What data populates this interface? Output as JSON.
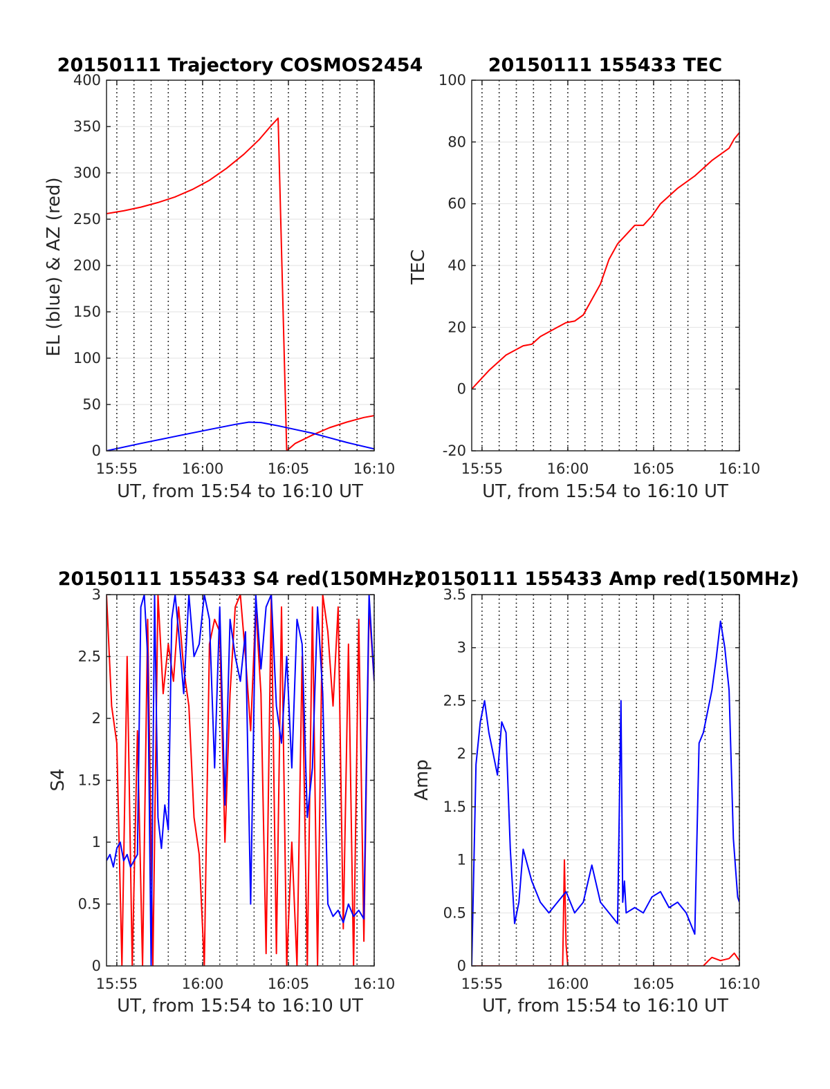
{
  "figure": {
    "background": "#ffffff"
  },
  "colors": {
    "el": "#0000ff",
    "az": "#ff0000",
    "grid": "#000000",
    "axis": "#262626"
  },
  "chart_data": [
    {
      "id": "trajectory",
      "type": "line",
      "title": "20150111 Trajectory COSMOS2454",
      "xlabel": "UT, from 15:54 to 16:10 UT",
      "ylabel": "EL (blue) & AZ (red)",
      "xlim": [
        "15:54.4",
        "16:10"
      ],
      "ylim": [
        0,
        400
      ],
      "xticks": [
        "15:55",
        "16:00",
        "16:05",
        "16:10"
      ],
      "yticks": [
        0,
        50,
        100,
        150,
        200,
        250,
        300,
        350,
        400
      ],
      "grid": "dotted vertical every minute, solid horizontal",
      "series": [
        {
          "key": "az",
          "color": "#ff0000",
          "x": [
            0.0,
            1.0,
            2.0,
            3.0,
            4.0,
            5.0,
            6.0,
            7.0,
            8.0,
            8.9,
            9.55,
            10.0,
            10.5,
            11.0,
            12.0,
            13.0,
            14.0,
            15.0,
            15.6
          ],
          "y": [
            256,
            259,
            263,
            268,
            274,
            282,
            292,
            305,
            320,
            336,
            350,
            359,
            0,
            8,
            17,
            25,
            31,
            36,
            38
          ]
        },
        {
          "key": "el",
          "color": "#0000ff",
          "x": [
            0.0,
            2.0,
            4.0,
            6.0,
            7.5,
            8.3,
            9.0,
            10.0,
            11.0,
            12.0,
            13.0,
            14.0,
            15.6
          ],
          "y": [
            0,
            8,
            15.5,
            23,
            28.5,
            31,
            30.5,
            27,
            23,
            19,
            14,
            9,
            2
          ]
        }
      ]
    },
    {
      "id": "tec",
      "type": "line",
      "title": "20150111 155433 TEC",
      "xlabel": "UT, from 15:54 to 16:10 UT",
      "ylabel": "TEC",
      "xlim": [
        "15:54.4",
        "16:10"
      ],
      "ylim": [
        -20,
        100
      ],
      "xticks": [
        "15:55",
        "16:00",
        "16:05",
        "16:10"
      ],
      "yticks": [
        -20,
        0,
        20,
        40,
        60,
        80,
        100
      ],
      "series": [
        {
          "key": "tec",
          "color": "#ff0000",
          "x": [
            0.0,
            0.5,
            1.0,
            2.0,
            3.0,
            3.5,
            4.0,
            5.0,
            5.5,
            6.0,
            6.5,
            7.0,
            7.5,
            8.0,
            8.5,
            9.0,
            9.5,
            10.0,
            10.5,
            11.0,
            12.0,
            13.0,
            14.0,
            14.5,
            15.0,
            15.3,
            15.6
          ],
          "y": [
            0,
            3,
            6,
            11,
            14,
            14.5,
            17,
            20,
            21.5,
            22,
            24,
            29,
            34,
            42,
            47,
            50,
            53,
            53,
            56,
            60,
            65,
            69,
            74,
            76,
            78,
            81,
            83
          ]
        }
      ]
    },
    {
      "id": "s4",
      "type": "line",
      "title": "20150111 155433 S4 red(150MHz)",
      "xlabel": "UT, from 15:54 to 16:10 UT",
      "ylabel": "S4",
      "xlim": [
        "15:54.4",
        "16:10"
      ],
      "ylim": [
        0,
        3
      ],
      "xticks": [
        "15:55",
        "16:00",
        "16:05",
        "16:10"
      ],
      "yticks": [
        0,
        0.5,
        1,
        1.5,
        2,
        2.5,
        3
      ],
      "series": [
        {
          "key": "s4_red",
          "color": "#ff0000",
          "x": [
            0.0,
            0.3,
            0.6,
            0.9,
            1.2,
            1.5,
            1.8,
            2.1,
            2.4,
            2.7,
            3.0,
            3.3,
            3.6,
            3.9,
            4.2,
            4.5,
            4.8,
            5.1,
            5.4,
            5.7,
            6.0,
            6.3,
            6.6,
            6.9,
            7.2,
            7.5,
            7.8,
            8.1,
            8.4,
            8.7,
            9.0,
            9.3,
            9.6,
            9.9,
            10.2,
            10.5,
            10.8,
            11.1,
            11.4,
            11.7,
            12.0,
            12.3,
            12.6,
            12.9,
            13.2,
            13.5,
            13.8,
            14.1,
            14.4,
            14.7,
            15.0,
            15.3,
            15.6
          ],
          "y": [
            3,
            2.1,
            1.8,
            0,
            2.5,
            0,
            1.9,
            0,
            2.8,
            0,
            3,
            2.2,
            2.6,
            2.3,
            2.9,
            2.4,
            2.1,
            1.2,
            0.9,
            0,
            2.6,
            2.8,
            2.7,
            1.0,
            2.2,
            2.9,
            3,
            2.5,
            1.9,
            2.9,
            2.2,
            0.1,
            3,
            0.1,
            2.9,
            0,
            1.0,
            0,
            2.5,
            0,
            2.9,
            0,
            3,
            2.7,
            2.1,
            2.9,
            0.3,
            2.6,
            0,
            2.8,
            0.2,
            2.9,
            2.3
          ]
        },
        {
          "key": "s4_blue",
          "color": "#0000ff",
          "x": [
            0.0,
            0.2,
            0.4,
            0.6,
            0.8,
            1.0,
            1.2,
            1.4,
            1.6,
            1.8,
            2.0,
            2.2,
            2.4,
            2.6,
            2.8,
            3.0,
            3.2,
            3.4,
            3.6,
            3.8,
            4.0,
            4.2,
            4.5,
            4.8,
            5.1,
            5.4,
            5.7,
            6.0,
            6.3,
            6.6,
            6.9,
            7.2,
            7.5,
            7.8,
            8.1,
            8.4,
            8.7,
            9.0,
            9.3,
            9.6,
            9.9,
            10.2,
            10.5,
            10.8,
            11.1,
            11.4,
            11.7,
            12.0,
            12.3,
            12.6,
            12.9,
            13.2,
            13.5,
            13.8,
            14.1,
            14.4,
            14.7,
            15.0,
            15.3,
            15.6
          ],
          "y": [
            0.85,
            0.9,
            0.8,
            0.95,
            1.0,
            0.85,
            0.9,
            0.8,
            0.85,
            0.9,
            2.9,
            3,
            2.5,
            0,
            3,
            1.2,
            0.95,
            1.3,
            1.1,
            2.8,
            3,
            2.7,
            2.2,
            3,
            2.5,
            2.6,
            3,
            2.8,
            1.6,
            2.9,
            1.3,
            2.8,
            2.5,
            2.3,
            2.7,
            0.5,
            3,
            2.4,
            2.9,
            3,
            2.1,
            1.8,
            2.5,
            1.6,
            2.8,
            2.6,
            1.2,
            1.6,
            2.9,
            2.2,
            0.5,
            0.4,
            0.45,
            0.35,
            0.5,
            0.4,
            0.45,
            0.38,
            3,
            2.3
          ]
        }
      ]
    },
    {
      "id": "amp",
      "type": "line",
      "title": "20150111 155433 Amp red(150MHz)",
      "xlabel": "UT, from 15:54 to 16:10 UT",
      "ylabel": "Amp",
      "xlim": [
        "15:54.4",
        "16:10"
      ],
      "ylim": [
        0,
        3.5
      ],
      "xticks": [
        "15:55",
        "16:00",
        "16:05",
        "16:10"
      ],
      "yticks": [
        0,
        0.5,
        1,
        1.5,
        2,
        2.5,
        3,
        3.5
      ],
      "series": [
        {
          "key": "amp_red",
          "color": "#ff0000",
          "x": [
            0.0,
            5.3,
            5.4,
            5.5,
            5.6,
            8.5,
            13.5,
            13.8,
            14.0,
            14.5,
            15.0,
            15.3,
            15.6
          ],
          "y": [
            0,
            0,
            1.0,
            0.2,
            0,
            0,
            0,
            0.05,
            0.08,
            0.05,
            0.07,
            0.12,
            0.05
          ]
        },
        {
          "key": "amp_blue",
          "color": "#0000ff",
          "x": [
            0.0,
            0.25,
            0.5,
            0.75,
            1.0,
            1.25,
            1.5,
            1.75,
            2.0,
            2.25,
            2.5,
            2.75,
            3.0,
            3.5,
            4.0,
            4.5,
            5.0,
            5.5,
            6.0,
            6.5,
            7.0,
            7.5,
            8.0,
            8.5,
            8.7,
            8.8,
            8.9,
            9.0,
            9.5,
            10.0,
            10.5,
            11.0,
            11.5,
            12.0,
            12.5,
            13.0,
            13.25,
            13.5,
            13.75,
            14.0,
            14.25,
            14.5,
            14.75,
            15.0,
            15.25,
            15.5,
            15.6
          ],
          "y": [
            0,
            1.9,
            2.3,
            2.5,
            2.2,
            2.0,
            1.8,
            2.3,
            2.2,
            1.1,
            0.4,
            0.6,
            1.1,
            0.8,
            0.6,
            0.5,
            0.6,
            0.7,
            0.5,
            0.6,
            0.95,
            0.6,
            0.5,
            0.4,
            2.5,
            0.6,
            0.8,
            0.5,
            0.55,
            0.5,
            0.65,
            0.7,
            0.55,
            0.6,
            0.5,
            0.3,
            2.1,
            2.2,
            2.4,
            2.6,
            2.9,
            3.25,
            3.0,
            2.6,
            1.2,
            0.65,
            0.6
          ]
        }
      ]
    }
  ]
}
